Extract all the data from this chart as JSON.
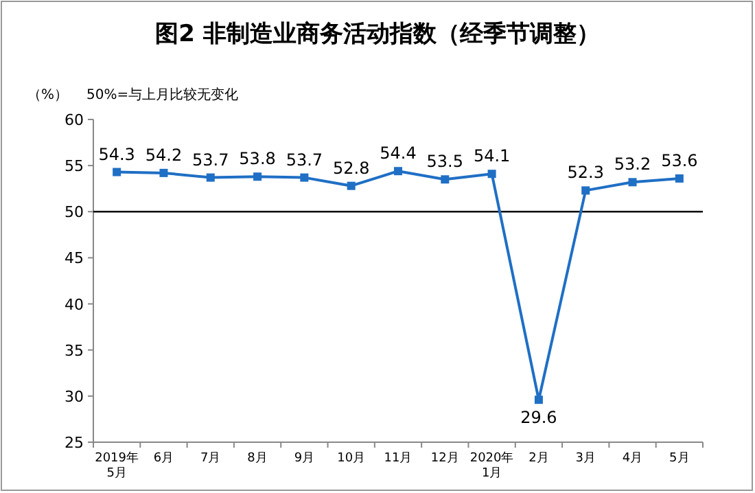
{
  "chart_data": {
    "type": "line",
    "title": "图2 非制造业商务活动指数（经季节调整）",
    "ylabel": "（%）",
    "annotations": [
      "50%=与上月比较无变化"
    ],
    "categories": [
      "2019年\n5月",
      "6月",
      "7月",
      "8月",
      "9月",
      "10月",
      "11月",
      "12月",
      "2020年\n1月",
      "2月",
      "3月",
      "4月",
      "5月"
    ],
    "series": [
      {
        "color": "#1f6fc5",
        "values": [
          54.3,
          54.2,
          53.7,
          53.8,
          53.7,
          52.8,
          54.4,
          53.5,
          54.1,
          29.6,
          52.3,
          53.2,
          53.6
        ]
      }
    ],
    "ylim": [
      25,
      60
    ],
    "yticks": [
      25,
      30,
      35,
      40,
      45,
      50,
      55,
      60
    ],
    "ref_lines": [
      {
        "axis": "y",
        "value": 50,
        "color": "#000000"
      }
    ],
    "data_labels": true,
    "marker": "square",
    "grid": false
  }
}
